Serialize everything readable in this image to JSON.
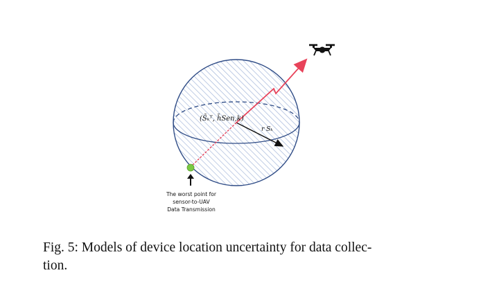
{
  "figure": {
    "center_label": "(S̄ₖᵀ, h̄Sen,k)",
    "radius_label": "r Sₖ",
    "worst_point_label": [
      "The worst point for",
      "sensor-to-UAV",
      "Data Transmission"
    ],
    "icons": [
      "uav-drone-icon",
      "up-arrow-icon",
      "sensor-point-icon"
    ],
    "colors": {
      "sphere_stroke": "#2f4c86",
      "hatch": "#9fb3d8",
      "link_line": "#e8435a",
      "sensor_point": "#7ac943",
      "drone": "#111111"
    }
  },
  "caption": {
    "line1": "Fig. 5: Models of device location uncertainty for data collec-",
    "line2": "tion."
  }
}
